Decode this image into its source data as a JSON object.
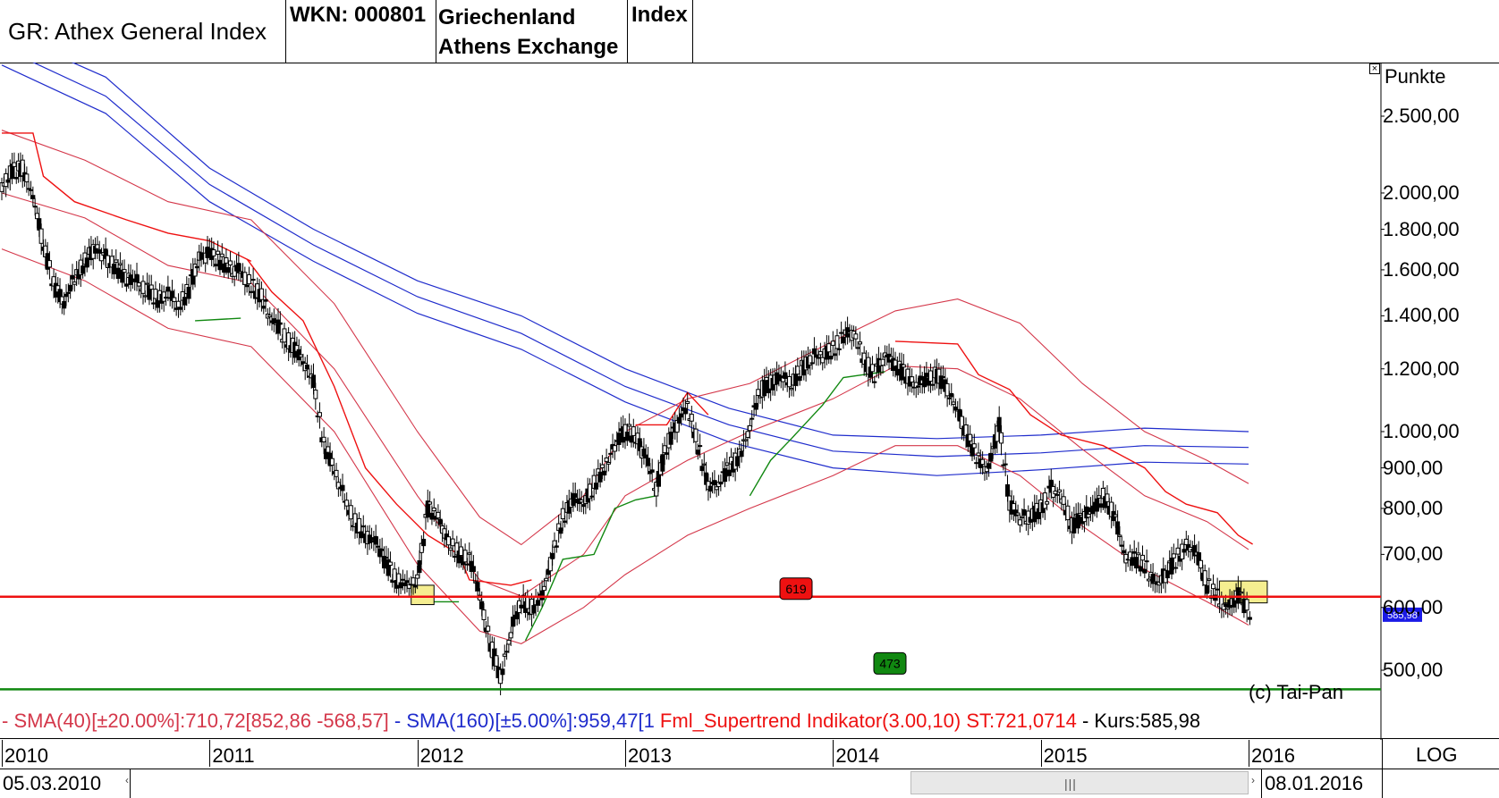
{
  "header": {
    "title": "GR: Athex General Index",
    "wkn": "WKN: 000801",
    "region_line1": "Griechenland",
    "region_line2": "Athens Exchange",
    "type": "Index"
  },
  "legend": {
    "sma40": "- SMA(40)[±20.00%]:710,72[852,86 -568,57]",
    "sma160": " - SMA(160)[±5.00%]:959,47[1",
    "supertrend": " Fml_Supertrend Indikator(3.00,10) ST:721,0714",
    "kurs": " - Kurs:585,98"
  },
  "footer": {
    "start_date": "05.03.2010",
    "end_date": "08.01.2016",
    "scale_mode": "LOG",
    "copyright": "(c) Tai-Pan"
  },
  "colors": {
    "sma40": "#d4374a",
    "sma160": "#1f2ccc",
    "supertrend_down": "#ee1111",
    "supertrend_up": "#118811",
    "resistance": "#ee1111",
    "support": "#118811",
    "candle": "#000000",
    "highlight": "#f5ee90",
    "last_price_bg": "#1a1ae6"
  },
  "chart_data": {
    "type": "candlestick",
    "yaxis_label": "Punkte",
    "y_scale": "log",
    "ylim": [
      455,
      2900
    ],
    "xlim": [
      2010.0,
      2016.04
    ],
    "y_ticks": [
      {
        "value": 2500,
        "label": "2.500,00"
      },
      {
        "value": 2000,
        "label": "2.000,00"
      },
      {
        "value": 1800,
        "label": "1.800,00"
      },
      {
        "value": 1600,
        "label": "1.600,00"
      },
      {
        "value": 1400,
        "label": "1.400,00"
      },
      {
        "value": 1200,
        "label": "1.200,00"
      },
      {
        "value": 1000,
        "label": "1.000,00"
      },
      {
        "value": 900,
        "label": "900,00"
      },
      {
        "value": 800,
        "label": "800,00"
      },
      {
        "value": 700,
        "label": "700,00"
      },
      {
        "value": 600,
        "label": "600,00"
      },
      {
        "value": 500,
        "label": "500,00"
      }
    ],
    "x_ticks": [
      {
        "value": 2010.0,
        "label": "2010"
      },
      {
        "value": 2011.0,
        "label": "2011"
      },
      {
        "value": 2012.0,
        "label": "2012"
      },
      {
        "value": 2013.0,
        "label": "2013"
      },
      {
        "value": 2014.0,
        "label": "2014"
      },
      {
        "value": 2015.0,
        "label": "2015"
      },
      {
        "value": 2016.0,
        "label": "2016"
      }
    ],
    "horizontal_lines": [
      {
        "value": 619,
        "label": "619",
        "kind": "resistance"
      },
      {
        "value": 473,
        "label": "473",
        "kind": "support"
      }
    ],
    "last_price": {
      "value": 585.98,
      "label": "585,98"
    },
    "highlight_zones": [
      {
        "x": [
          2011.97,
          2012.08
        ],
        "y": [
          605,
          640
        ]
      },
      {
        "x": [
          2015.86,
          2016.09
        ],
        "y": [
          608,
          648
        ]
      }
    ],
    "price": [
      [
        2010.0,
        2060
      ],
      [
        2010.05,
        2130
      ],
      [
        2010.1,
        2150
      ],
      [
        2010.15,
        1980
      ],
      [
        2010.2,
        1720
      ],
      [
        2010.25,
        1530
      ],
      [
        2010.3,
        1450
      ],
      [
        2010.35,
        1560
      ],
      [
        2010.4,
        1640
      ],
      [
        2010.45,
        1710
      ],
      [
        2010.5,
        1660
      ],
      [
        2010.55,
        1610
      ],
      [
        2010.6,
        1560
      ],
      [
        2010.65,
        1540
      ],
      [
        2010.7,
        1510
      ],
      [
        2010.75,
        1470
      ],
      [
        2010.8,
        1490
      ],
      [
        2010.85,
        1440
      ],
      [
        2010.9,
        1510
      ],
      [
        2010.95,
        1660
      ],
      [
        2011.0,
        1680
      ],
      [
        2011.05,
        1640
      ],
      [
        2011.1,
        1610
      ],
      [
        2011.15,
        1590
      ],
      [
        2011.2,
        1530
      ],
      [
        2011.25,
        1480
      ],
      [
        2011.3,
        1380
      ],
      [
        2011.35,
        1330
      ],
      [
        2011.4,
        1280
      ],
      [
        2011.45,
        1230
      ],
      [
        2011.5,
        1150
      ],
      [
        2011.55,
        960
      ],
      [
        2011.6,
        900
      ],
      [
        2011.65,
        820
      ],
      [
        2011.7,
        770
      ],
      [
        2011.75,
        740
      ],
      [
        2011.8,
        720
      ],
      [
        2011.85,
        680
      ],
      [
        2011.9,
        650
      ],
      [
        2011.95,
        640
      ],
      [
        2012.0,
        650
      ],
      [
        2012.05,
        800
      ],
      [
        2012.1,
        780
      ],
      [
        2012.15,
        730
      ],
      [
        2012.2,
        700
      ],
      [
        2012.25,
        690
      ],
      [
        2012.3,
        620
      ],
      [
        2012.35,
        540
      ],
      [
        2012.4,
        490
      ],
      [
        2012.45,
        560
      ],
      [
        2012.5,
        610
      ],
      [
        2012.55,
        600
      ],
      [
        2012.6,
        620
      ],
      [
        2012.65,
        700
      ],
      [
        2012.7,
        780
      ],
      [
        2012.75,
        820
      ],
      [
        2012.8,
        810
      ],
      [
        2012.85,
        860
      ],
      [
        2012.9,
        900
      ],
      [
        2012.95,
        960
      ],
      [
        2013.0,
        1000
      ],
      [
        2013.05,
        990
      ],
      [
        2013.1,
        920
      ],
      [
        2013.15,
        850
      ],
      [
        2013.2,
        960
      ],
      [
        2013.25,
        1020
      ],
      [
        2013.3,
        1080
      ],
      [
        2013.35,
        960
      ],
      [
        2013.4,
        850
      ],
      [
        2013.45,
        860
      ],
      [
        2013.5,
        900
      ],
      [
        2013.55,
        930
      ],
      [
        2013.6,
        1020
      ],
      [
        2013.65,
        1130
      ],
      [
        2013.7,
        1150
      ],
      [
        2013.75,
        1170
      ],
      [
        2013.8,
        1150
      ],
      [
        2013.85,
        1200
      ],
      [
        2013.9,
        1240
      ],
      [
        2013.95,
        1250
      ],
      [
        2014.0,
        1270
      ],
      [
        2014.05,
        1320
      ],
      [
        2014.1,
        1340
      ],
      [
        2014.15,
        1230
      ],
      [
        2014.2,
        1180
      ],
      [
        2014.25,
        1250
      ],
      [
        2014.3,
        1210
      ],
      [
        2014.35,
        1180
      ],
      [
        2014.4,
        1140
      ],
      [
        2014.45,
        1160
      ],
      [
        2014.5,
        1180
      ],
      [
        2014.55,
        1130
      ],
      [
        2014.6,
        1060
      ],
      [
        2014.65,
        980
      ],
      [
        2014.7,
        920
      ],
      [
        2014.75,
        900
      ],
      [
        2014.8,
        1020
      ],
      [
        2014.85,
        810
      ],
      [
        2014.9,
        780
      ],
      [
        2014.95,
        780
      ],
      [
        2015.0,
        800
      ],
      [
        2015.05,
        850
      ],
      [
        2015.1,
        830
      ],
      [
        2015.15,
        760
      ],
      [
        2015.2,
        780
      ],
      [
        2015.25,
        790
      ],
      [
        2015.3,
        830
      ],
      [
        2015.35,
        790
      ],
      [
        2015.4,
        700
      ],
      [
        2015.45,
        690
      ],
      [
        2015.5,
        680
      ],
      [
        2015.55,
        640
      ],
      [
        2015.6,
        660
      ],
      [
        2015.65,
        690
      ],
      [
        2015.7,
        720
      ],
      [
        2015.75,
        700
      ],
      [
        2015.8,
        640
      ],
      [
        2015.85,
        620
      ],
      [
        2015.9,
        600
      ],
      [
        2015.95,
        620
      ],
      [
        2016.02,
        586
      ]
    ],
    "sma160_bands": [
      [
        [
          2010.0,
          3200
        ],
        [
          2010.5,
          2800
        ],
        [
          2011.0,
          2150
        ],
        [
          2011.5,
          1800
        ],
        [
          2012.0,
          1550
        ],
        [
          2012.5,
          1400
        ],
        [
          2013.0,
          1200
        ],
        [
          2013.5,
          1070
        ],
        [
          2014.0,
          990
        ],
        [
          2014.5,
          980
        ],
        [
          2015.0,
          990
        ],
        [
          2015.5,
          1010
        ],
        [
          2016.0,
          1000
        ]
      ],
      [
        [
          2010.0,
          3050
        ],
        [
          2010.5,
          2650
        ],
        [
          2011.0,
          2050
        ],
        [
          2011.5,
          1720
        ],
        [
          2012.0,
          1480
        ],
        [
          2012.5,
          1330
        ],
        [
          2013.0,
          1140
        ],
        [
          2013.5,
          1020
        ],
        [
          2014.0,
          945
        ],
        [
          2014.5,
          930
        ],
        [
          2015.0,
          940
        ],
        [
          2015.5,
          960
        ],
        [
          2016.0,
          955
        ]
      ],
      [
        [
          2010.0,
          2900
        ],
        [
          2010.5,
          2520
        ],
        [
          2011.0,
          1950
        ],
        [
          2011.5,
          1640
        ],
        [
          2012.0,
          1410
        ],
        [
          2012.5,
          1270
        ],
        [
          2013.0,
          1090
        ],
        [
          2013.5,
          970
        ],
        [
          2014.0,
          900
        ],
        [
          2014.5,
          880
        ],
        [
          2015.0,
          895
        ],
        [
          2015.5,
          915
        ],
        [
          2016.0,
          910
        ]
      ]
    ],
    "sma40_bands": [
      [
        [
          2010.0,
          2400
        ],
        [
          2010.4,
          2200
        ],
        [
          2010.8,
          1950
        ],
        [
          2011.2,
          1850
        ],
        [
          2011.6,
          1450
        ],
        [
          2012.0,
          1000
        ],
        [
          2012.3,
          780
        ],
        [
          2012.5,
          720
        ],
        [
          2012.8,
          830
        ],
        [
          2013.0,
          1000
        ],
        [
          2013.3,
          1100
        ],
        [
          2013.6,
          1150
        ],
        [
          2014.0,
          1300
        ],
        [
          2014.3,
          1420
        ],
        [
          2014.6,
          1470
        ],
        [
          2014.9,
          1370
        ],
        [
          2015.2,
          1150
        ],
        [
          2015.5,
          1000
        ],
        [
          2015.8,
          920
        ],
        [
          2016.0,
          860
        ]
      ],
      [
        [
          2010.0,
          2000
        ],
        [
          2010.4,
          1860
        ],
        [
          2010.8,
          1620
        ],
        [
          2011.2,
          1540
        ],
        [
          2011.6,
          1200
        ],
        [
          2012.0,
          830
        ],
        [
          2012.3,
          650
        ],
        [
          2012.5,
          620
        ],
        [
          2012.8,
          700
        ],
        [
          2013.0,
          830
        ],
        [
          2013.3,
          920
        ],
        [
          2013.6,
          1000
        ],
        [
          2014.0,
          1100
        ],
        [
          2014.3,
          1210
        ],
        [
          2014.6,
          1200
        ],
        [
          2014.9,
          1100
        ],
        [
          2015.2,
          950
        ],
        [
          2015.5,
          830
        ],
        [
          2015.8,
          770
        ],
        [
          2016.0,
          710
        ]
      ],
      [
        [
          2010.0,
          1700
        ],
        [
          2010.4,
          1550
        ],
        [
          2010.8,
          1350
        ],
        [
          2011.2,
          1280
        ],
        [
          2011.6,
          1000
        ],
        [
          2012.0,
          680
        ],
        [
          2012.3,
          560
        ],
        [
          2012.5,
          540
        ],
        [
          2012.8,
          600
        ],
        [
          2013.0,
          660
        ],
        [
          2013.3,
          740
        ],
        [
          2013.6,
          800
        ],
        [
          2014.0,
          880
        ],
        [
          2014.3,
          960
        ],
        [
          2014.6,
          960
        ],
        [
          2014.9,
          880
        ],
        [
          2015.2,
          760
        ],
        [
          2015.5,
          670
        ],
        [
          2015.8,
          610
        ],
        [
          2016.0,
          570
        ]
      ]
    ],
    "supertrend": [
      {
        "trend": "down",
        "points": [
          [
            2010.0,
            2380
          ],
          [
            2010.15,
            2380
          ],
          [
            2010.2,
            2100
          ],
          [
            2010.35,
            1950
          ],
          [
            2010.6,
            1850
          ],
          [
            2010.8,
            1780
          ],
          [
            2011.0,
            1740
          ],
          [
            2011.2,
            1640
          ]
        ]
      },
      {
        "trend": "up",
        "points": [
          [
            2010.93,
            1380
          ],
          [
            2011.15,
            1390
          ]
        ]
      },
      {
        "trend": "down",
        "points": [
          [
            2011.18,
            1650
          ],
          [
            2011.3,
            1500
          ],
          [
            2011.45,
            1380
          ],
          [
            2011.6,
            1140
          ],
          [
            2011.75,
            900
          ],
          [
            2011.9,
            810
          ],
          [
            2012.05,
            740
          ],
          [
            2012.2,
            700
          ],
          [
            2012.25,
            650
          ],
          [
            2012.45,
            640
          ],
          [
            2012.55,
            650
          ]
        ]
      },
      {
        "trend": "up",
        "points": [
          [
            2011.97,
            610
          ],
          [
            2012.2,
            610
          ]
        ]
      },
      {
        "trend": "up",
        "points": [
          [
            2012.52,
            545
          ],
          [
            2012.6,
            600
          ],
          [
            2012.7,
            690
          ],
          [
            2012.85,
            700
          ],
          [
            2012.95,
            800
          ],
          [
            2013.05,
            820
          ],
          [
            2013.15,
            830
          ]
        ]
      },
      {
        "trend": "down",
        "points": [
          [
            2013.05,
            1020
          ],
          [
            2013.2,
            1020
          ],
          [
            2013.3,
            1120
          ],
          [
            2013.4,
            1050
          ]
        ]
      },
      {
        "trend": "up",
        "points": [
          [
            2013.6,
            830
          ],
          [
            2013.7,
            920
          ],
          [
            2013.8,
            980
          ],
          [
            2013.95,
            1080
          ],
          [
            2014.05,
            1170
          ],
          [
            2014.15,
            1180
          ],
          [
            2014.25,
            1190
          ]
        ]
      },
      {
        "trend": "down",
        "points": [
          [
            2014.3,
            1300
          ],
          [
            2014.6,
            1290
          ],
          [
            2014.7,
            1180
          ],
          [
            2014.85,
            1130
          ],
          [
            2014.95,
            1050
          ],
          [
            2015.1,
            990
          ],
          [
            2015.3,
            960
          ],
          [
            2015.5,
            900
          ],
          [
            2015.6,
            840
          ],
          [
            2015.7,
            810
          ],
          [
            2015.85,
            790
          ],
          [
            2015.95,
            740
          ],
          [
            2016.02,
            721
          ]
        ]
      }
    ]
  }
}
